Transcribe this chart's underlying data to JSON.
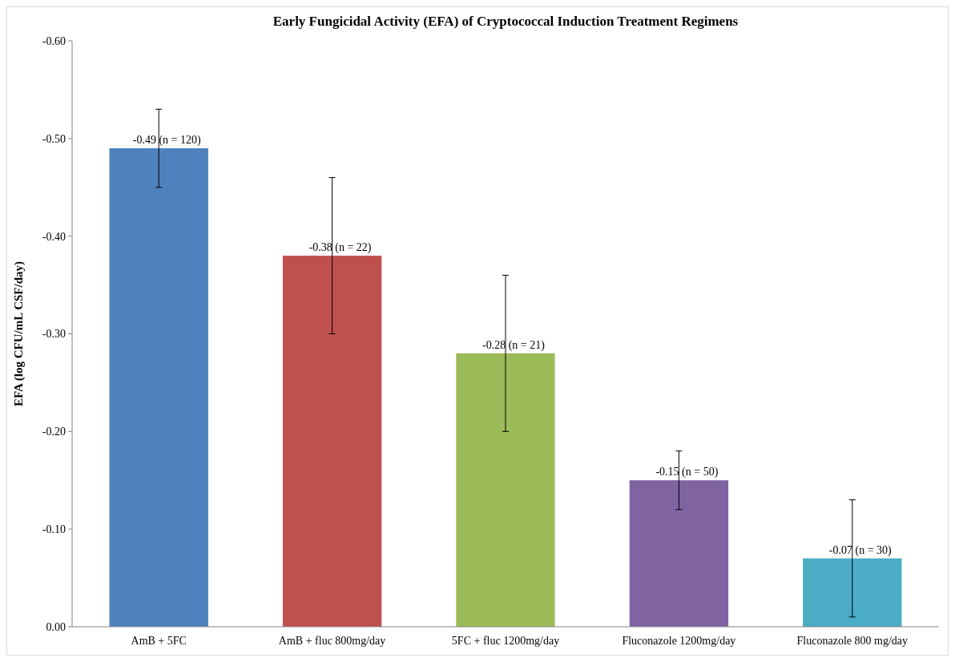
{
  "chart_data": {
    "type": "bar",
    "title": "Early Fungicidal Activity (EFA) of Cryptococcal Induction Treatment Regimens",
    "ylabel": "EFA (log CFU/mL  CSF/day)",
    "categories": [
      "AmB + 5FC",
      "AmB + fluc 800mg/day",
      "5FC + fluc 1200mg/day",
      "Fluconazole 1200mg/day",
      "Fluconazole 800 mg/day"
    ],
    "values": [
      -0.49,
      -0.38,
      -0.28,
      -0.15,
      -0.07
    ],
    "colors": [
      "#4f81bd",
      "#c0504d",
      "#9bbb59",
      "#8064a2",
      "#4bacc6"
    ],
    "errors": [
      [
        -0.53,
        -0.45
      ],
      [
        -0.46,
        -0.3
      ],
      [
        -0.36,
        -0.2
      ],
      [
        -0.18,
        -0.12
      ],
      [
        -0.13,
        -0.01
      ]
    ],
    "value_labels": [
      "-0.49 (n = 120)",
      "-0.38 (n = 22)",
      "-0.28 (n = 21)",
      "-0.15 (n = 50)",
      "-0.07 (n = 30)"
    ],
    "ylim": [
      0,
      -0.6
    ],
    "yticks": [
      {
        "value": 0,
        "label": "0.00"
      },
      {
        "value": -0.1,
        "label": "-0.10"
      },
      {
        "value": -0.2,
        "label": "-0.20"
      },
      {
        "value": -0.3,
        "label": "-0.30"
      },
      {
        "value": -0.4,
        "label": "-0.40"
      },
      {
        "value": -0.5,
        "label": "-0.50"
      },
      {
        "value": -0.6,
        "label": "-0.60"
      }
    ],
    "grid": false
  }
}
